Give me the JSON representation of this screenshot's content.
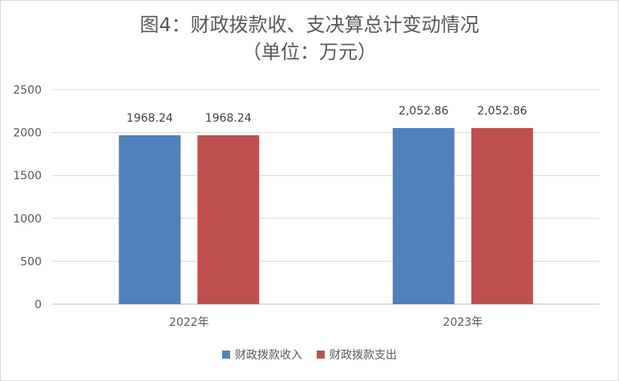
{
  "chart_data": {
    "type": "bar",
    "title": "图4：财政拨款收、支决算总计变动情况",
    "subtitle": "（单位：万元）",
    "categories": [
      "2022年",
      "2023年"
    ],
    "series": [
      {
        "name": "财政拨款收入",
        "values": [
          1968.24,
          2052.86
        ],
        "labels": [
          "1968.24",
          "2,052.86"
        ],
        "color": "#4f81bd"
      },
      {
        "name": "财政拨款支出",
        "values": [
          1968.24,
          2052.86
        ],
        "labels": [
          "1968.24",
          "2,052.86"
        ],
        "color": "#c0504d"
      }
    ],
    "ylim": [
      0,
      2500
    ],
    "yticks": [
      "0",
      "500",
      "1000",
      "1500",
      "2000",
      "2500"
    ],
    "grid": true,
    "legend": "bottom"
  }
}
